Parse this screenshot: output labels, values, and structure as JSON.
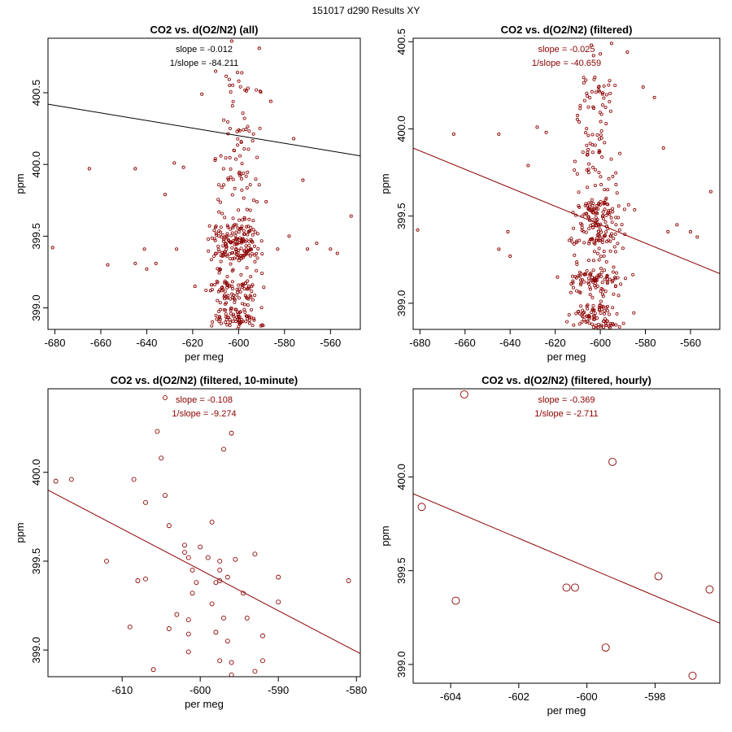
{
  "figure_title": "151017   d290   Results XY",
  "colors": {
    "axis": "#000000",
    "point": "#8b0000",
    "fit_line_all": "#000000",
    "fit_line_filtered": "#8b0000",
    "annotation_all": "#000000",
    "annotation_filtered": "#8b0000"
  },
  "chart_data": [
    {
      "type": "scatter",
      "title": "CO2 vs. d(O2/N2) (all)",
      "xlabel": "per meg",
      "ylabel": "ppm",
      "xlim": [
        -683,
        -547
      ],
      "ylim": [
        398.85,
        400.88
      ],
      "xticks": [
        -680,
        -660,
        -640,
        -620,
        -600,
        -580,
        -560
      ],
      "yticks": [
        399.0,
        399.5,
        400.0,
        400.5
      ],
      "annotation": [
        "slope = -0.012",
        "1/slope = -84.211"
      ],
      "fit": {
        "x": [
          -683,
          -547
        ],
        "y": [
          400.42,
          400.06
        ]
      },
      "point_size": "small",
      "cloud": {
        "count": 420,
        "center_x": -601,
        "spread_x": 9,
        "y_min": 398.85,
        "y_max": 400.65
      },
      "points": [
        [
          -681,
          399.42
        ],
        [
          -665,
          399.97
        ],
        [
          -657,
          399.3
        ],
        [
          -645,
          399.31
        ],
        [
          -645,
          399.97
        ],
        [
          -641,
          399.41
        ],
        [
          -640,
          399.27
        ],
        [
          -636,
          399.31
        ],
        [
          -632,
          399.79
        ],
        [
          -628,
          400.01
        ],
        [
          -627,
          399.41
        ],
        [
          -624,
          399.98
        ],
        [
          -616,
          400.49
        ],
        [
          -610,
          400.65
        ],
        [
          -603,
          400.86
        ],
        [
          -591,
          400.81
        ],
        [
          -586,
          400.44
        ],
        [
          -583,
          399.41
        ],
        [
          -576,
          400.18
        ],
        [
          -572,
          399.89
        ],
        [
          -570,
          399.41
        ],
        [
          -566,
          399.45
        ],
        [
          -560,
          399.41
        ],
        [
          -557,
          399.38
        ],
        [
          -551,
          399.64
        ],
        [
          -588,
          399.74
        ],
        [
          -578,
          399.5
        ],
        [
          -619,
          399.15
        ]
      ]
    },
    {
      "type": "scatter",
      "title": "CO2 vs. d(O2/N2) (filtered)",
      "xlabel": "per meg",
      "ylabel": "ppm",
      "xlim": [
        -683,
        -547
      ],
      "ylim": [
        398.85,
        400.52
      ],
      "xticks": [
        -680,
        -660,
        -640,
        -620,
        -600,
        -580,
        -560
      ],
      "yticks": [
        399.0,
        399.5,
        400.0,
        400.5
      ],
      "annotation": [
        "slope = -0.025",
        "1/slope = -40.659"
      ],
      "fit": {
        "x": [
          -683,
          -547
        ],
        "y": [
          399.89,
          399.17
        ]
      },
      "point_size": "small",
      "cloud": {
        "count": 420,
        "center_x": -601,
        "spread_x": 9,
        "y_min": 398.85,
        "y_max": 400.3
      },
      "points": [
        [
          -681,
          399.42
        ],
        [
          -665,
          399.97
        ],
        [
          -645,
          399.31
        ],
        [
          -645,
          399.97
        ],
        [
          -641,
          399.41
        ],
        [
          -640,
          399.27
        ],
        [
          -632,
          399.79
        ],
        [
          -628,
          400.01
        ],
        [
          -624,
          399.98
        ],
        [
          -604,
          400.48
        ],
        [
          -603,
          400.42
        ],
        [
          -600,
          400.43
        ],
        [
          -595,
          400.49
        ],
        [
          -588,
          400.44
        ],
        [
          -581,
          400.24
        ],
        [
          -576,
          400.18
        ],
        [
          -572,
          399.89
        ],
        [
          -570,
          399.41
        ],
        [
          -566,
          399.45
        ],
        [
          -560,
          399.41
        ],
        [
          -557,
          399.38
        ],
        [
          -551,
          399.64
        ],
        [
          -619,
          399.15
        ]
      ]
    },
    {
      "type": "scatter",
      "title": "CO2 vs. d(O2/N2) (filtered, 10-minute)",
      "xlabel": "per meg",
      "ylabel": "ppm",
      "xlim": [
        -619.5,
        -579.5
      ],
      "ylim": [
        398.85,
        400.47
      ],
      "xticks": [
        -610,
        -600,
        -590,
        -580
      ],
      "yticks": [
        399.0,
        399.5,
        400.0
      ],
      "annotation": [
        "slope = -0.108",
        "1/slope = -9.274"
      ],
      "fit": {
        "x": [
          -619.5,
          -579.5
        ],
        "y": [
          399.9,
          398.98
        ]
      },
      "point_size": "medium",
      "cloud": null,
      "points": [
        [
          -618.5,
          399.95
        ],
        [
          -616.5,
          399.96
        ],
        [
          -612.0,
          399.5
        ],
        [
          -609.0,
          399.13
        ],
        [
          -608.5,
          399.96
        ],
        [
          -608.0,
          399.39
        ],
        [
          -607.0,
          399.4
        ],
        [
          -607.0,
          399.83
        ],
        [
          -606.0,
          398.89
        ],
        [
          -605.5,
          400.23
        ],
        [
          -605.0,
          400.08
        ],
        [
          -604.5,
          399.87
        ],
        [
          -604.5,
          400.42
        ],
        [
          -604.0,
          399.7
        ],
        [
          -604.0,
          399.12
        ],
        [
          -603.0,
          399.2
        ],
        [
          -602.0,
          399.55
        ],
        [
          -602.0,
          399.59
        ],
        [
          -601.5,
          398.99
        ],
        [
          -601.5,
          399.09
        ],
        [
          -601.5,
          399.17
        ],
        [
          -601.5,
          399.52
        ],
        [
          -601.0,
          399.45
        ],
        [
          -601.0,
          399.32
        ],
        [
          -600.5,
          399.38
        ],
        [
          -600.0,
          399.58
        ],
        [
          -599.0,
          399.52
        ],
        [
          -598.5,
          399.72
        ],
        [
          -598.5,
          399.26
        ],
        [
          -598.0,
          399.38
        ],
        [
          -598.0,
          399.1
        ],
        [
          -597.5,
          399.39
        ],
        [
          -597.5,
          398.94
        ],
        [
          -597.5,
          399.5
        ],
        [
          -597.5,
          399.45
        ],
        [
          -597.0,
          399.18
        ],
        [
          -597.0,
          400.13
        ],
        [
          -596.5,
          399.41
        ],
        [
          -596.5,
          399.05
        ],
        [
          -596.0,
          400.22
        ],
        [
          -596.0,
          398.93
        ],
        [
          -596.0,
          398.86
        ],
        [
          -595.5,
          399.51
        ],
        [
          -594.5,
          399.32
        ],
        [
          -594.0,
          399.18
        ],
        [
          -593.0,
          399.54
        ],
        [
          -593.0,
          398.88
        ],
        [
          -592.0,
          399.08
        ],
        [
          -592.0,
          398.94
        ],
        [
          -590.0,
          399.41
        ],
        [
          -590.0,
          399.27
        ],
        [
          -581.0,
          399.39
        ]
      ]
    },
    {
      "type": "scatter",
      "title": "CO2 vs. d(O2/N2) (filtered, hourly)",
      "xlabel": "per meg",
      "ylabel": "ppm",
      "xlim": [
        -605.1,
        -596.1
      ],
      "ylim": [
        398.9,
        400.47
      ],
      "xticks": [
        -604,
        -602,
        -600,
        -598
      ],
      "yticks": [
        399.0,
        399.5,
        400.0
      ],
      "annotation": [
        "slope = -0.369",
        "1/slope = -2.711"
      ],
      "fit": {
        "x": [
          -605.1,
          -596.1
        ],
        "y": [
          399.91,
          399.22
        ]
      },
      "point_size": "large",
      "cloud": null,
      "points": [
        [
          -604.85,
          399.84
        ],
        [
          -603.85,
          399.34
        ],
        [
          -603.6,
          400.44
        ],
        [
          -600.6,
          399.41
        ],
        [
          -600.35,
          399.41
        ],
        [
          -599.45,
          399.09
        ],
        [
          -599.25,
          400.08
        ],
        [
          -597.9,
          399.47
        ],
        [
          -596.9,
          398.94
        ],
        [
          -596.4,
          399.4
        ]
      ]
    }
  ]
}
